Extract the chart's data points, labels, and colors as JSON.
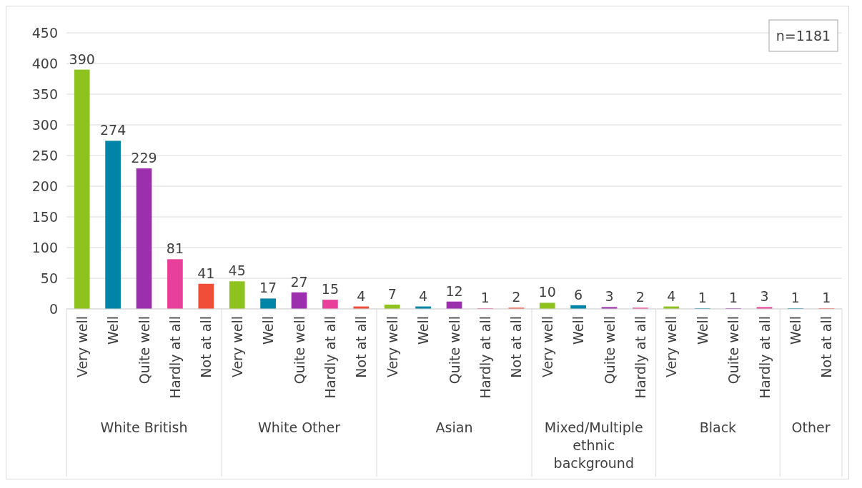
{
  "chart_data": [
    {
      "type": "bar",
      "xlabel": "White British",
      "categories": [
        "Very well",
        "Well",
        "Quite well",
        "Hardly at all",
        "Not at all"
      ],
      "values": [
        390,
        274,
        229,
        81,
        41
      ],
      "colors": [
        "#8dc21f",
        "#0085a8",
        "#9b2fae",
        "#e8409a",
        "#f04e37"
      ],
      "ylim": [
        0,
        450
      ],
      "yticks": [
        0,
        50,
        100,
        150,
        200,
        250,
        300,
        350,
        400,
        450
      ],
      "grid": "y",
      "data_labels": true
    },
    {
      "type": "bar",
      "xlabel": "White Other",
      "categories": [
        "Very well",
        "Well",
        "Quite well",
        "Hardly at all",
        "Not at all"
      ],
      "values": [
        45,
        17,
        27,
        15,
        4
      ],
      "colors": [
        "#8dc21f",
        "#0085a8",
        "#9b2fae",
        "#e8409a",
        "#f04e37"
      ],
      "ylim": [
        0,
        450
      ],
      "yticks": [
        0,
        50,
        100,
        150,
        200,
        250,
        300,
        350,
        400,
        450
      ],
      "grid": "y",
      "data_labels": true,
      "tick_labels": "x"
    },
    {
      "type": "bar",
      "xlabel": "Asian",
      "categories": [
        "Very well",
        "Well",
        "Quite well",
        "Hardly at all",
        "Not at all"
      ],
      "values": [
        7,
        4,
        12,
        1,
        2
      ],
      "colors": [
        "#8dc21f",
        "#0085a8",
        "#9b2fae",
        "#e8409a",
        "#f04e37"
      ],
      "ylim": [
        0,
        450
      ],
      "yticks": [
        0,
        50,
        100,
        150,
        200,
        250,
        300,
        350,
        400,
        450
      ],
      "grid": "y",
      "data_labels": true,
      "tick_labels": "x"
    },
    {
      "type": "bar",
      "xlabel": "Mixed/Multiple ethnic background",
      "categories": [
        "Very well",
        "Well",
        "Quite well",
        "Hardly at all"
      ],
      "values": [
        10,
        6,
        3,
        2
      ],
      "colors": [
        "#8dc21f",
        "#0085a8",
        "#9b2fae",
        "#e8409a"
      ],
      "ylim": [
        0,
        450
      ],
      "yticks": [
        0,
        50,
        100,
        150,
        200,
        250,
        300,
        350,
        400,
        450
      ],
      "grid": "y",
      "data_labels": true,
      "tick_labels": "x"
    },
    {
      "type": "bar",
      "xlabel": "Black",
      "categories": [
        "Very well",
        "Well",
        "Quite well",
        "Hardly at all"
      ],
      "values": [
        4,
        1,
        1,
        3
      ],
      "colors": [
        "#8dc21f",
        "#0085a8",
        "#9b2fae",
        "#e8409a"
      ],
      "ylim": [
        0,
        450
      ],
      "yticks": [
        0,
        50,
        100,
        150,
        200,
        250,
        300,
        350,
        400,
        450
      ],
      "grid": "y",
      "data_labels": true,
      "tick_labels": "x"
    },
    {
      "type": "bar",
      "xlabel": "Other",
      "categories": [
        "Well",
        "Not at all"
      ],
      "values": [
        1,
        1
      ],
      "colors": [
        "#0085a8",
        "#f04e37"
      ],
      "ylim": [
        0,
        450
      ],
      "yticks": [
        0,
        50,
        100,
        150,
        200,
        250,
        300,
        350,
        400,
        450
      ],
      "grid": "y",
      "data_labels": true,
      "tick_labels": "x",
      "annotations": [
        "n=1181"
      ]
    }
  ]
}
